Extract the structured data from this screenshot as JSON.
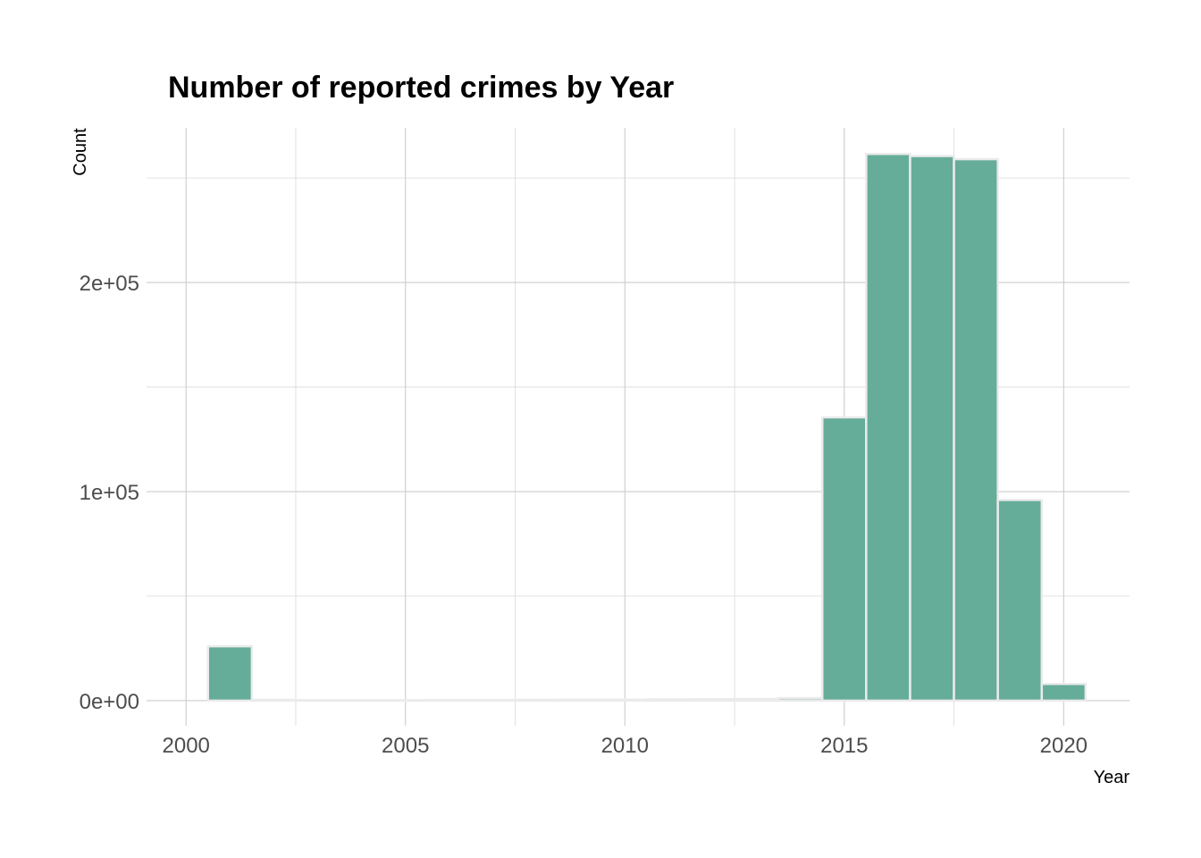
{
  "chart_data": {
    "type": "bar",
    "title": "Number of reported crimes by Year",
    "xlabel": "Year",
    "ylabel": "Count",
    "x": [
      2001,
      2002,
      2003,
      2004,
      2005,
      2006,
      2007,
      2008,
      2009,
      2010,
      2011,
      2012,
      2013,
      2014,
      2015,
      2016,
      2017,
      2018,
      2019,
      2020
    ],
    "values": [
      26000,
      400,
      200,
      200,
      200,
      300,
      300,
      400,
      500,
      500,
      600,
      700,
      800,
      1200,
      135500,
      261500,
      260500,
      259000,
      96000,
      8000
    ],
    "xlim": [
      1999.1,
      2021.5
    ],
    "ylim": [
      -12000,
      274000
    ],
    "x_ticks": [
      2000,
      2005,
      2010,
      2015,
      2020
    ],
    "x_tick_labels": [
      "2000",
      "2005",
      "2010",
      "2015",
      "2020"
    ],
    "y_ticks": [
      0,
      100000,
      200000
    ],
    "y_tick_labels": [
      "0e+00",
      "1e+05",
      "2e+05"
    ],
    "grid": true,
    "legend": "none",
    "colors": {
      "bar_fill": "#66ad99",
      "bar_outline": "#ebebeb",
      "grid": "#cccccc",
      "background": "#ffffff"
    }
  }
}
